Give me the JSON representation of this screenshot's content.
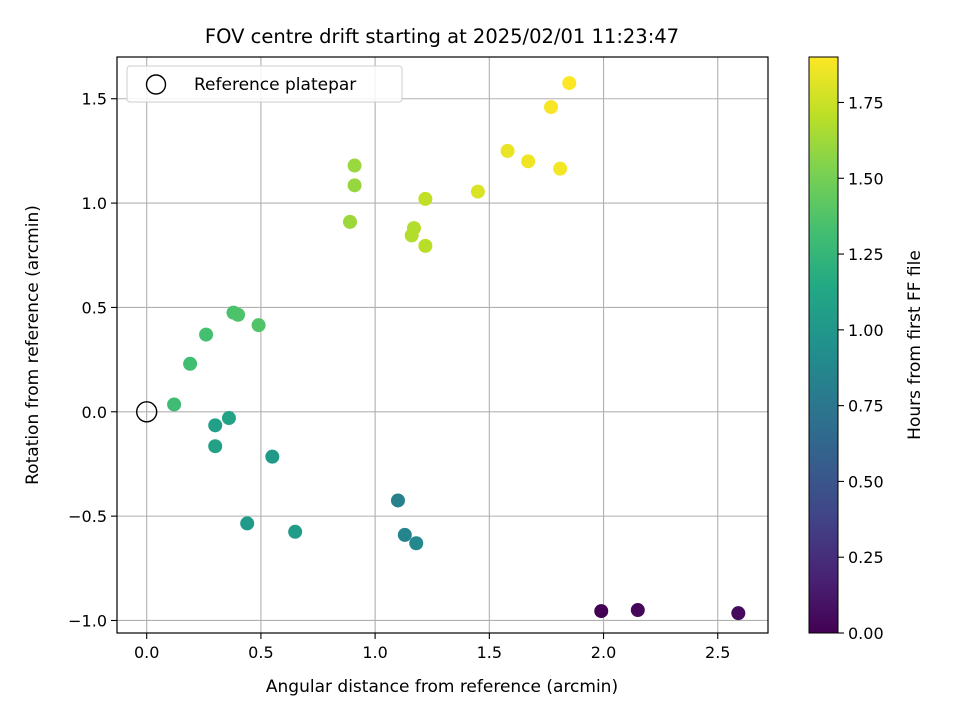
{
  "chart_data": {
    "type": "scatter",
    "title": "FOV centre drift starting at 2025/02/01 11:23:47",
    "xlabel": "Angular distance from reference (arcmin)",
    "ylabel": "Rotation from reference (arcmin)",
    "xlim": [
      -0.13,
      2.72
    ],
    "ylim": [
      -1.06,
      1.7
    ],
    "x_ticks": [
      0.0,
      0.5,
      1.0,
      1.5,
      2.0,
      2.5
    ],
    "x_tick_labels": [
      "0.0",
      "0.5",
      "1.0",
      "1.5",
      "2.0",
      "2.5"
    ],
    "y_ticks": [
      -1.0,
      -0.5,
      0.0,
      0.5,
      1.0,
      1.5
    ],
    "y_tick_labels": [
      "−1.0",
      "−0.5",
      "0.0",
      "0.5",
      "1.0",
      "1.5"
    ],
    "grid": true,
    "legend": {
      "position": "top-left",
      "entries": [
        "Reference platepar"
      ]
    },
    "reference_point": {
      "x": 0.0,
      "y": 0.0
    },
    "colorbar": {
      "label": "Hours from first FF file",
      "range": [
        0.0,
        1.9
      ],
      "ticks": [
        0.0,
        0.25,
        0.5,
        0.75,
        1.0,
        1.25,
        1.5,
        1.75
      ],
      "tick_labels": [
        "0.00",
        "0.25",
        "0.50",
        "0.75",
        "1.00",
        "1.25",
        "1.50",
        "1.75"
      ],
      "colormap": "viridis"
    },
    "points": [
      {
        "x": 1.99,
        "y": -0.955,
        "hours": 0.0
      },
      {
        "x": 2.15,
        "y": -0.95,
        "hours": 0.03
      },
      {
        "x": 2.59,
        "y": -0.965,
        "hours": 0.05
      },
      {
        "x": 1.1,
        "y": -0.425,
        "hours": 0.83
      },
      {
        "x": 1.13,
        "y": -0.59,
        "hours": 0.86
      },
      {
        "x": 1.18,
        "y": -0.63,
        "hours": 0.88
      },
      {
        "x": 0.55,
        "y": -0.215,
        "hours": 1.02
      },
      {
        "x": 0.44,
        "y": -0.535,
        "hours": 1.03
      },
      {
        "x": 0.65,
        "y": -0.575,
        "hours": 1.04
      },
      {
        "x": 0.3,
        "y": -0.065,
        "hours": 1.07
      },
      {
        "x": 0.3,
        "y": -0.165,
        "hours": 1.08
      },
      {
        "x": 0.36,
        "y": -0.03,
        "hours": 1.1
      },
      {
        "x": 0.12,
        "y": 0.035,
        "hours": 1.3
      },
      {
        "x": 0.19,
        "y": 0.23,
        "hours": 1.32
      },
      {
        "x": 0.26,
        "y": 0.37,
        "hours": 1.33
      },
      {
        "x": 0.38,
        "y": 0.475,
        "hours": 1.35
      },
      {
        "x": 0.4,
        "y": 0.465,
        "hours": 1.36
      },
      {
        "x": 0.49,
        "y": 0.415,
        "hours": 1.38
      },
      {
        "x": 0.89,
        "y": 0.91,
        "hours": 1.62
      },
      {
        "x": 0.91,
        "y": 1.085,
        "hours": 1.6
      },
      {
        "x": 0.91,
        "y": 1.18,
        "hours": 1.61
      },
      {
        "x": 1.16,
        "y": 0.845,
        "hours": 1.68
      },
      {
        "x": 1.17,
        "y": 0.88,
        "hours": 1.68
      },
      {
        "x": 1.22,
        "y": 0.795,
        "hours": 1.7
      },
      {
        "x": 1.22,
        "y": 1.02,
        "hours": 1.72
      },
      {
        "x": 1.45,
        "y": 1.055,
        "hours": 1.8
      },
      {
        "x": 1.58,
        "y": 1.25,
        "hours": 1.84
      },
      {
        "x": 1.67,
        "y": 1.2,
        "hours": 1.86
      },
      {
        "x": 1.81,
        "y": 1.165,
        "hours": 1.87
      },
      {
        "x": 1.77,
        "y": 1.46,
        "hours": 1.88
      },
      {
        "x": 1.85,
        "y": 1.575,
        "hours": 1.9
      }
    ]
  }
}
